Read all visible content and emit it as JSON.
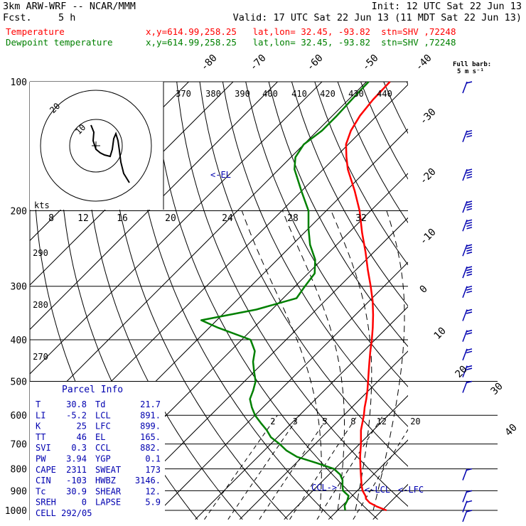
{
  "header": {
    "model": "3km ARW-WRF -- NCAR/MMM",
    "init": "Init: 12 UTC Sat 22 Jun 13",
    "fcst_label": "Fcst.",
    "fcst_value": "5 h",
    "valid": "Valid: 17 UTC Sat 22 Jun 13 (11 MDT Sat 22 Jun 13)",
    "temp_label": "Temperature",
    "temp_info": "x,y=614.99,258.25   lat,lon= 32.45, -93.82  stn=SHV ,72248",
    "dew_label": "Dewpoint temperature",
    "dew_info": "x,y=614.99,258.25   lat,lon= 32.45, -93.82  stn=SHV ,72248",
    "barb_label_1": "Full barb:",
    "barb_label_2": "5 m s⁻¹"
  },
  "colors": {
    "temperature": "#ff0000",
    "dewpoint": "#008000",
    "grid": "#000000",
    "barbs": "#0000b0",
    "parcel": "#000000"
  },
  "chart_data": {
    "type": "line",
    "title": "",
    "pressure_ticks": [
      "100",
      "200",
      "300",
      "400",
      "500",
      "600",
      "700",
      "800",
      "900",
      "1000"
    ],
    "pressure_levels": [
      100,
      200,
      300,
      400,
      500,
      600,
      700,
      800,
      900,
      1000
    ],
    "isotherm_labels": [
      "-80",
      "-70",
      "-60",
      "-50",
      "-40",
      "-30",
      "-20",
      "-10",
      "0",
      "10",
      "20",
      "30",
      "40"
    ],
    "isotherm_values": [
      -80,
      -70,
      -60,
      -50,
      -40,
      -30,
      -20,
      -10,
      0,
      10,
      20,
      30,
      40
    ],
    "theta_labels": [
      "370",
      "380",
      "390",
      "400",
      "410",
      "420",
      "430",
      "440",
      "290",
      "280",
      "270"
    ],
    "mixing_ratio_labels": [
      "2",
      "3",
      "5",
      "8",
      "12",
      "20"
    ],
    "mixing_ratio_values": [
      2,
      3,
      5,
      8,
      12,
      20
    ],
    "series": [
      {
        "name": "Temperature",
        "x_unit": "C",
        "y_unit": "hPa",
        "points": [
          [
            1000,
            31.0
          ],
          [
            980,
            28.0
          ],
          [
            960,
            25.5
          ],
          [
            940,
            23.8
          ],
          [
            925,
            23.0
          ],
          [
            900,
            21.2
          ],
          [
            875,
            19.8
          ],
          [
            850,
            18.5
          ],
          [
            800,
            15.8
          ],
          [
            750,
            13.0
          ],
          [
            700,
            10.3
          ],
          [
            650,
            7.2
          ],
          [
            600,
            4.5
          ],
          [
            575,
            2.9
          ],
          [
            550,
            1.4
          ],
          [
            525,
            -0.3
          ],
          [
            500,
            -2.2
          ],
          [
            475,
            -4.2
          ],
          [
            450,
            -6.3
          ],
          [
            425,
            -8.5
          ],
          [
            400,
            -10.7
          ],
          [
            375,
            -13.2
          ],
          [
            350,
            -16.0
          ],
          [
            325,
            -19.2
          ],
          [
            300,
            -23.0
          ],
          [
            275,
            -27.3
          ],
          [
            250,
            -31.8
          ],
          [
            225,
            -37.0
          ],
          [
            200,
            -42.5
          ],
          [
            180,
            -48.0
          ],
          [
            160,
            -54.5
          ],
          [
            150,
            -57.5
          ],
          [
            140,
            -60.5
          ],
          [
            130,
            -62.5
          ],
          [
            120,
            -63.8
          ],
          [
            110,
            -64.5
          ],
          [
            100,
            -64.7
          ]
        ]
      },
      {
        "name": "Dewpoint temperature",
        "x_unit": "C",
        "y_unit": "hPa",
        "points": [
          [
            1000,
            21.7
          ],
          [
            975,
            20.5
          ],
          [
            950,
            20.0
          ],
          [
            925,
            19.2
          ],
          [
            900,
            16.8
          ],
          [
            875,
            15.5
          ],
          [
            850,
            14.3
          ],
          [
            825,
            12.5
          ],
          [
            800,
            9.8
          ],
          [
            775,
            4.5
          ],
          [
            750,
            -1.2
          ],
          [
            725,
            -5.0
          ],
          [
            700,
            -8.0
          ],
          [
            675,
            -11.5
          ],
          [
            650,
            -14.0
          ],
          [
            625,
            -17.0
          ],
          [
            600,
            -20.0
          ],
          [
            575,
            -22.5
          ],
          [
            550,
            -24.8
          ],
          [
            525,
            -26.0
          ],
          [
            500,
            -27.5
          ],
          [
            475,
            -30.0
          ],
          [
            450,
            -32.5
          ],
          [
            425,
            -34.5
          ],
          [
            400,
            -38.0
          ],
          [
            375,
            -48.0
          ],
          [
            360,
            -53.5
          ],
          [
            340,
            -43.5
          ],
          [
            320,
            -37.0
          ],
          [
            300,
            -37.8
          ],
          [
            280,
            -38.5
          ],
          [
            260,
            -41.5
          ],
          [
            240,
            -46.0
          ],
          [
            220,
            -50.0
          ],
          [
            200,
            -54.0
          ],
          [
            180,
            -60.0
          ],
          [
            160,
            -66.5
          ],
          [
            150,
            -69.0
          ],
          [
            140,
            -70.0
          ],
          [
            130,
            -69.0
          ],
          [
            120,
            -69.0
          ],
          [
            110,
            -69.3
          ],
          [
            100,
            -69.5
          ]
        ]
      }
    ],
    "wind_barbs": [
      {
        "p": 100,
        "speed_ms": 5
      },
      {
        "p": 130,
        "speed_ms": 15
      },
      {
        "p": 160,
        "speed_ms": 20
      },
      {
        "p": 190,
        "speed_ms": 20
      },
      {
        "p": 210,
        "speed_ms": 20
      },
      {
        "p": 240,
        "speed_ms": 20
      },
      {
        "p": 270,
        "speed_ms": 20
      },
      {
        "p": 300,
        "speed_ms": 15
      },
      {
        "p": 340,
        "speed_ms": 10
      },
      {
        "p": 380,
        "speed_ms": 10
      },
      {
        "p": 420,
        "speed_ms": 10
      },
      {
        "p": 460,
        "speed_ms": 10
      },
      {
        "p": 500,
        "speed_ms": 5
      },
      {
        "p": 800,
        "speed_ms": 5
      },
      {
        "p": 900,
        "speed_ms": 5
      },
      {
        "p": 950,
        "speed_ms": 5
      },
      {
        "p": 1000,
        "speed_ms": 5
      }
    ],
    "levels_marked": {
      "el_label": "<-EL",
      "ccl_label": "CCL->",
      "lcl_label": "<-LCL",
      "lfc_label": "<-LFC"
    },
    "hodograph": {
      "ring_labels": [
        "20",
        "10"
      ],
      "speed_axis_label": "kts",
      "speed_ticks": [
        "8",
        "12",
        "16",
        "20",
        "24",
        "28",
        "32"
      ]
    }
  },
  "parcel_info": {
    "title": "Parcel Info",
    "rows": [
      [
        "T",
        "30.8",
        "Td",
        "21.7"
      ],
      [
        "LI",
        "-5.2",
        "LCL",
        "891."
      ],
      [
        "K",
        "25",
        "LFC",
        "899."
      ],
      [
        "TT",
        "46",
        "EL",
        "165."
      ],
      [
        "SVI",
        "0.3",
        "CCL",
        "882."
      ],
      [
        "PW",
        "3.94",
        "YGP",
        "0.1"
      ],
      [
        "CAPE",
        "2311",
        "SWEAT",
        "173"
      ],
      [
        "CIN",
        "-103",
        "HWBZ",
        "3146."
      ],
      [
        "Tc",
        "30.9",
        "SHEAR",
        "12."
      ],
      [
        "SREH",
        "0",
        "LAPSE",
        "5.9"
      ],
      [
        "CELL",
        "292/05",
        "",
        ""
      ]
    ]
  }
}
